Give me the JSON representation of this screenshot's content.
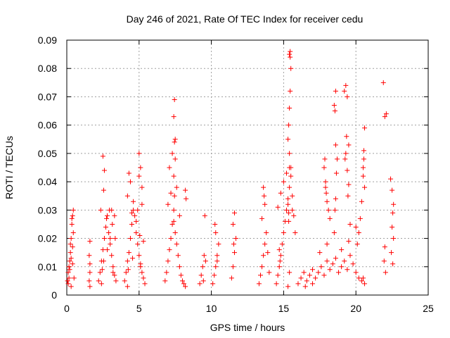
{
  "chart_data": {
    "type": "scatter",
    "title": "Day 246 of 2021, Rate Of TEC Index for receiver cedu",
    "xlabel": "GPS time / hours",
    "ylabel": "ROTI / TECUs",
    "xlim": [
      0,
      25
    ],
    "ylim": [
      0,
      0.09
    ],
    "x_ticks": [
      "0",
      "5",
      "10",
      "15",
      "20",
      "25"
    ],
    "y_ticks": [
      "0",
      "0.01",
      "0.02",
      "0.03",
      "0.04",
      "0.05",
      "0.06",
      "0.07",
      "0.08",
      "0.09"
    ],
    "grid": true,
    "marker": "+",
    "marker_color": "#ff0000",
    "series": [
      {
        "x": [
          0.05,
          0.1,
          0.15,
          0.2,
          0.25,
          0.3,
          0.35,
          0.4,
          0.45,
          0.5,
          0.1,
          0.2,
          0.3,
          0.4,
          0.45,
          0.35,
          0.25,
          0.15,
          0.3,
          0.4,
          1.55,
          1.6,
          1.6,
          1.55,
          1.6,
          1.6,
          2.2,
          2.3,
          2.4,
          2.5,
          2.6,
          2.7,
          2.8,
          2.9,
          3.0,
          3.1,
          3.2,
          3.3,
          3.4,
          2.35,
          2.55,
          2.75,
          2.95,
          3.15,
          3.35,
          2.5,
          2.6,
          3.1,
          3.3,
          2.4,
          2.45,
          2.55,
          2.8,
          3.0,
          3.2,
          4.0,
          4.1,
          4.2,
          4.3,
          4.4,
          4.5,
          4.6,
          4.7,
          4.8,
          4.9,
          5.0,
          5.1,
          5.2,
          5.3,
          5.4,
          4.2,
          4.4,
          4.6,
          4.8,
          5.0,
          5.2,
          4.3,
          4.5,
          4.9,
          5.0,
          5.1,
          5.2,
          5.3,
          4.2,
          4.25,
          4.55,
          5.05,
          5.1,
          6.8,
          6.9,
          7.0,
          7.1,
          7.2,
          7.3,
          7.4,
          7.5,
          7.6,
          7.7,
          7.8,
          7.9,
          8.0,
          8.1,
          8.2,
          7.0,
          7.2,
          7.4,
          7.6,
          7.8,
          7.1,
          7.3,
          7.5,
          7.4,
          7.45,
          7.45,
          7.5,
          7.45,
          7.4,
          8.2,
          8.25,
          9.2,
          9.3,
          9.4,
          9.5,
          9.6,
          9.55,
          9.45,
          10.1,
          10.2,
          10.3,
          10.4,
          10.5,
          10.3,
          10.25,
          10.4,
          11.4,
          11.5,
          11.6,
          11.7,
          11.5,
          11.6,
          11.55,
          13.3,
          13.4,
          13.5,
          13.6,
          13.7,
          13.8,
          13.9,
          14.0,
          13.5,
          13.7,
          13.6,
          13.65,
          14.5,
          14.6,
          14.7,
          14.8,
          14.9,
          15.0,
          15.1,
          15.2,
          15.3,
          15.4,
          15.5,
          15.6,
          15.7,
          15.8,
          14.6,
          14.8,
          15.0,
          15.2,
          15.4,
          15.6,
          14.7,
          14.75,
          15.3,
          15.35,
          15.4,
          15.45,
          15.5,
          15.45,
          15.4,
          15.45,
          15.4,
          15.5,
          15.35,
          15.3,
          15.35,
          15.4,
          15.3,
          16.0,
          16.2,
          16.4,
          16.6,
          16.8,
          17.0,
          17.2,
          17.4,
          17.6,
          17.8,
          18.0,
          18.2,
          18.4,
          18.6,
          18.8,
          19.0,
          19.2,
          19.4,
          19.6,
          19.8,
          20.0,
          20.2,
          20.4,
          20.6,
          16.5,
          17.0,
          17.5,
          18.0,
          18.5,
          19.0,
          19.5,
          20.0,
          20.5,
          17.8,
          17.85,
          17.9,
          17.95,
          18.0,
          18.1,
          18.2,
          17.9,
          18.5,
          18.6,
          18.55,
          18.6,
          18.7,
          18.65,
          18.6,
          18.55,
          19.2,
          19.3,
          19.4,
          19.5,
          19.35,
          19.3,
          19.25,
          19.4,
          19.5,
          19.45,
          19.6,
          20.1,
          20.2,
          20.3,
          20.4,
          20.5,
          20.6,
          20.55,
          20.5,
          20.6,
          20.55,
          21.9,
          22.0,
          22.1,
          22.0,
          21.95,
          22.05,
          22.4,
          22.5,
          22.6,
          22.55,
          22.5,
          22.6,
          22.45,
          22.55
        ],
        "y": [
          0.005,
          0.008,
          0.01,
          0.012,
          0.015,
          0.02,
          0.025,
          0.028,
          0.03,
          0.006,
          0.004,
          0.009,
          0.013,
          0.017,
          0.022,
          0.027,
          0.018,
          0.006,
          0.003,
          0.011,
          0.005,
          0.008,
          0.011,
          0.014,
          0.019,
          0.003,
          0.005,
          0.008,
          0.012,
          0.016,
          0.02,
          0.024,
          0.028,
          0.022,
          0.018,
          0.014,
          0.01,
          0.007,
          0.005,
          0.03,
          0.037,
          0.027,
          0.03,
          0.025,
          0.02,
          0.049,
          0.044,
          0.03,
          0.028,
          0.004,
          0.009,
          0.012,
          0.016,
          0.02,
          0.008,
          0.005,
          0.008,
          0.012,
          0.015,
          0.02,
          0.025,
          0.03,
          0.028,
          0.022,
          0.018,
          0.014,
          0.01,
          0.008,
          0.006,
          0.004,
          0.035,
          0.04,
          0.033,
          0.026,
          0.042,
          0.038,
          0.043,
          0.029,
          0.03,
          0.05,
          0.045,
          0.032,
          0.019,
          0.003,
          0.009,
          0.013,
          0.021,
          0.011,
          0.005,
          0.008,
          0.012,
          0.016,
          0.02,
          0.025,
          0.03,
          0.022,
          0.018,
          0.014,
          0.01,
          0.007,
          0.005,
          0.004,
          0.003,
          0.032,
          0.036,
          0.042,
          0.038,
          0.028,
          0.045,
          0.05,
          0.055,
          0.063,
          0.069,
          0.054,
          0.048,
          0.035,
          0.026,
          0.037,
          0.034,
          0.004,
          0.007,
          0.01,
          0.014,
          0.012,
          0.028,
          0.005,
          0.004,
          0.007,
          0.01,
          0.014,
          0.018,
          0.022,
          0.025,
          0.012,
          0.006,
          0.01,
          0.015,
          0.02,
          0.025,
          0.029,
          0.018,
          0.004,
          0.007,
          0.01,
          0.014,
          0.018,
          0.022,
          0.015,
          0.008,
          0.027,
          0.032,
          0.038,
          0.035,
          0.004,
          0.007,
          0.01,
          0.014,
          0.018,
          0.022,
          0.026,
          0.03,
          0.034,
          0.038,
          0.042,
          0.035,
          0.028,
          0.022,
          0.031,
          0.036,
          0.04,
          0.043,
          0.045,
          0.03,
          0.016,
          0.012,
          0.055,
          0.06,
          0.066,
          0.072,
          0.08,
          0.084,
          0.085,
          0.086,
          0.05,
          0.045,
          0.026,
          0.032,
          0.029,
          0.008,
          0.003,
          0.004,
          0.006,
          0.008,
          0.005,
          0.007,
          0.009,
          0.006,
          0.008,
          0.01,
          0.007,
          0.012,
          0.009,
          0.011,
          0.013,
          0.008,
          0.01,
          0.012,
          0.009,
          0.014,
          0.011,
          0.008,
          0.006,
          0.005,
          0.004,
          0.003,
          0.004,
          0.015,
          0.018,
          0.022,
          0.016,
          0.019,
          0.024,
          0.006,
          0.045,
          0.048,
          0.04,
          0.036,
          0.033,
          0.03,
          0.027,
          0.038,
          0.067,
          0.072,
          0.065,
          0.053,
          0.048,
          0.043,
          0.034,
          0.03,
          0.072,
          0.074,
          0.07,
          0.053,
          0.056,
          0.05,
          0.048,
          0.044,
          0.039,
          0.035,
          0.025,
          0.018,
          0.022,
          0.027,
          0.033,
          0.045,
          0.059,
          0.048,
          0.042,
          0.038,
          0.051,
          0.075,
          0.063,
          0.064,
          0.017,
          0.012,
          0.008,
          0.041,
          0.037,
          0.032,
          0.029,
          0.024,
          0.02,
          0.015,
          0.011
        ]
      }
    ]
  }
}
